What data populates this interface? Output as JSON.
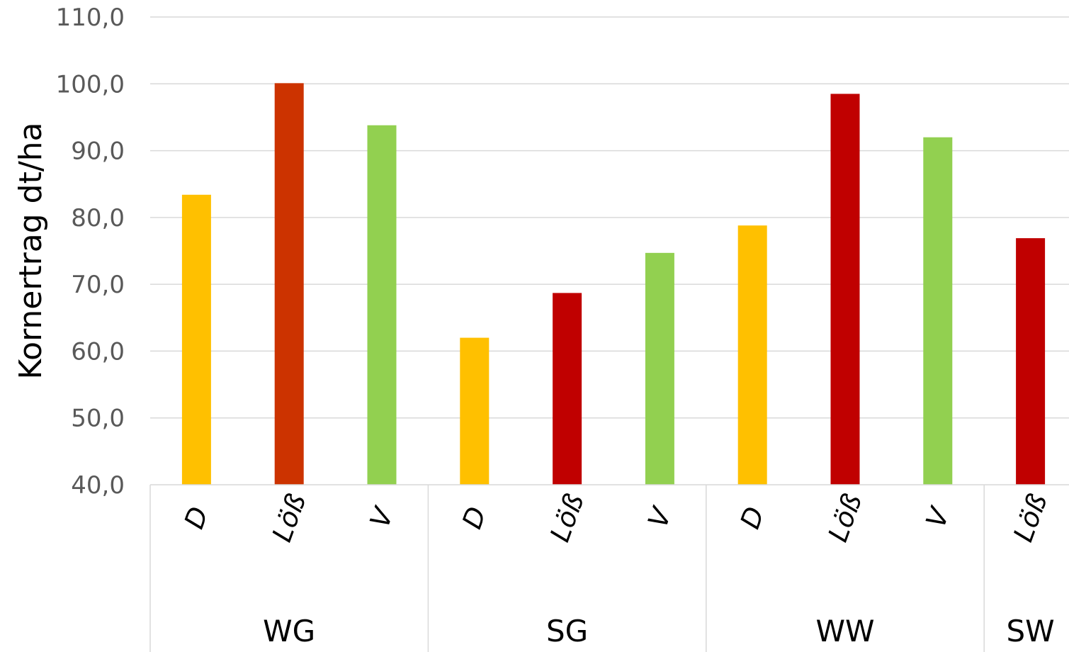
{
  "chart_data": {
    "type": "bar",
    "ylabel": "Kornertrag dt/ha",
    "ylim": [
      40,
      110
    ],
    "yticks": [
      "40,0",
      "50,0",
      "60,0",
      "70,0",
      "80,0",
      "90,0",
      "100,0",
      "110,0"
    ],
    "grid": true,
    "legend": "none",
    "groups": [
      {
        "label": "WG",
        "bars": [
          {
            "category": "D",
            "value": 83.4,
            "color": "#FFC000"
          },
          {
            "category": "Löß",
            "value": 100.1,
            "color": "#CC3300"
          },
          {
            "category": "V",
            "value": 93.8,
            "color": "#92D050"
          }
        ]
      },
      {
        "label": "SG",
        "bars": [
          {
            "category": "D",
            "value": 62.0,
            "color": "#FFC000"
          },
          {
            "category": "Löß",
            "value": 68.7,
            "color": "#C00000"
          },
          {
            "category": "V",
            "value": 74.7,
            "color": "#92D050"
          }
        ]
      },
      {
        "label": "WW",
        "bars": [
          {
            "category": "D",
            "value": 78.8,
            "color": "#FFC000"
          },
          {
            "category": "Löß",
            "value": 98.5,
            "color": "#C00000"
          },
          {
            "category": "V",
            "value": 92.0,
            "color": "#92D050"
          }
        ]
      },
      {
        "label": "SW",
        "bars": [
          {
            "category": "Löß",
            "value": 76.9,
            "color": "#C00000"
          }
        ]
      }
    ]
  }
}
